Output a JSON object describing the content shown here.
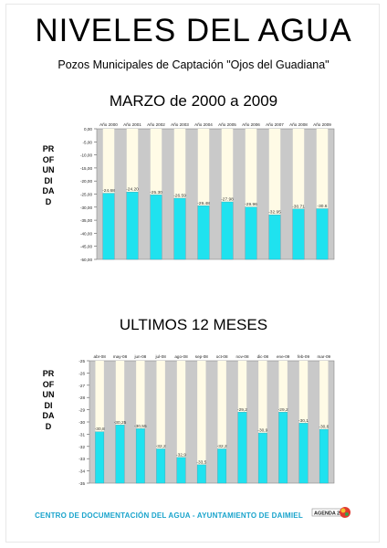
{
  "page": {
    "title": "NIVELES DEL AGUA",
    "subtitle": "Pozos Municipales de Captación \"Ojos del Guadiana\"",
    "footer": "CENTRO DE DOCUMENTACIÓN DEL AGUA - AYUNTAMIENTO DE DAIMIEL",
    "logo_text": "AGENDA 21",
    "logo_icon": "agenda21-logo-icon",
    "colors": {
      "bar": "#1fe2ef",
      "column_bg": "#fffbe6",
      "plot_bg": "#c9c9c9",
      "footer": "#1aa4cc"
    }
  },
  "chart_data": [
    {
      "type": "bar",
      "title": "MARZO de 2000 a 2009",
      "ylabel": "PROFUNDIDAD",
      "categories": [
        "Año 2000",
        "Año 2001",
        "Año 2002",
        "Año 2003",
        "Año 2004",
        "Año 2005",
        "Año 2006",
        "Año 2007",
        "Año 2008",
        "Año 2009"
      ],
      "values": [
        -24.68,
        -24.2,
        -25.3,
        -26.59,
        -29.48,
        -27.98,
        -29.96,
        -32.95,
        -30.71,
        -30.6
      ],
      "value_labels": [
        "-24.68",
        "-24.20",
        "-25.30",
        "-26.59",
        "-29.48",
        "-27.98",
        "-29.96",
        "-32.95",
        "-30.71",
        "-30.6"
      ],
      "yticks": [
        "0,00",
        "-5,00",
        "-10,00",
        "-15,00",
        "-20,00",
        "-25,00",
        "-30,00",
        "-35,00",
        "-40,00",
        "-45,00",
        "-50,00"
      ],
      "ylim": [
        -50,
        0
      ],
      "grid": false,
      "legend": "none"
    },
    {
      "type": "bar",
      "title": "ULTIMOS 12 MESES",
      "ylabel": "PROFUNDIDAD",
      "categories": [
        "abr-08",
        "may-08",
        "jun-08",
        "jul-08",
        "ago-08",
        "sep-08",
        "oct-08",
        "nov-08",
        "dic-08",
        "ene-09",
        "feb-09",
        "mar-09"
      ],
      "values": [
        -30.8,
        -30.25,
        -30.55,
        -32.2,
        -32.9,
        -33.5,
        -32.2,
        -29.2,
        -30.9,
        -29.2,
        -30.1,
        -30.6
      ],
      "value_labels": [
        "-30,8",
        "-30,25",
        "-30,55",
        "-32,2",
        "-32,9",
        "-33,5",
        "-32,2",
        "-29,2",
        "-30,9",
        "-29,2",
        "-30,1",
        "-30,6"
      ],
      "yticks": [
        "-25",
        "-26",
        "-27",
        "-28",
        "-29",
        "-30",
        "-31",
        "-32",
        "-33",
        "-34",
        "-35"
      ],
      "ylim": [
        -35,
        -25
      ],
      "grid": false,
      "legend": "none"
    }
  ]
}
